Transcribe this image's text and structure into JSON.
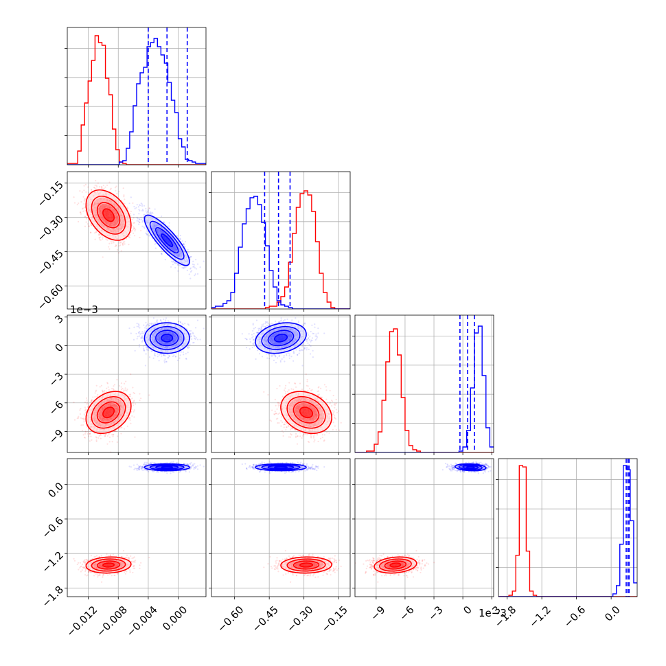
{
  "chart_data": {
    "type": "corner",
    "colors": {
      "red": "#ff0000",
      "blue": "#0000ff"
    },
    "grid": true,
    "series": [
      {
        "color": "#ff0000",
        "mean": [
          -0.0093,
          -0.29,
          -0.007,
          -1.4
        ],
        "std": [
          0.0015,
          0.055,
          0.0011,
          0.07
        ],
        "corr": [
          0,
          -0.4,
          0.3,
          0.1
        ]
      },
      {
        "color": "#0000ff",
        "mean": [
          -0.0015,
          -0.4,
          0.0008,
          0.3
        ],
        "std": [
          0.0015,
          0.055,
          0.0008,
          0.03
        ],
        "corr": [
          -0.85,
          0.3,
          0,
          0
        ]
      }
    ],
    "quantiles": {
      "color": "#0000ff",
      "p0": [
        -0.004,
        -0.0015,
        0.0012
      ],
      "p1": [
        -0.47,
        -0.41,
        -0.36
      ],
      "p2": [
        -0.0003,
        0.0005,
        0.0012
      ],
      "p3": [
        0.26,
        0.29,
        0.31
      ]
    },
    "panels": {
      "p0": {
        "range": [
          -0.0148,
          0.0037
        ],
        "ticks": [
          -0.012,
          -0.008,
          -0.004,
          0.0
        ],
        "tick_labels": [
          "−0.012",
          "−0.008",
          "−0.004",
          "0.000"
        ]
      },
      "p1": {
        "range": [
          -0.7,
          -0.1
        ],
        "ticks": [
          -0.6,
          -0.45,
          -0.3,
          -0.15
        ],
        "tick_labels": [
          "−0.60",
          "−0.45",
          "−0.30",
          "−0.15"
        ]
      },
      "p2": {
        "range": [
          -0.0112,
          0.0032
        ],
        "ticks": [
          -0.009,
          -0.006,
          -0.003,
          0.0,
          0.003
        ],
        "tick_labels": [
          "−9",
          "−6",
          "−3",
          "0",
          "3"
        ],
        "offset_label": "1e−3"
      },
      "p3": {
        "range": [
          -1.95,
          0.45
        ],
        "ticks": [
          -1.8,
          -1.2,
          -0.6,
          0.0
        ],
        "tick_labels": [
          "−1.8",
          "−1.2",
          "−0.6",
          "0.0"
        ]
      }
    },
    "y_axis_labels": {
      "row1": {
        "ticks": [
          -0.6,
          -0.45,
          -0.3,
          -0.15
        ],
        "tick_labels": [
          "−0.60",
          "−0.45",
          "−0.30",
          "−0.15"
        ]
      },
      "row2": {
        "ticks": [
          -0.009,
          -0.006,
          -0.003,
          0.0,
          0.003
        ],
        "tick_labels": [
          "−9",
          "−6",
          "−3",
          "0",
          "3"
        ],
        "offset_label": "1e−3"
      },
      "row3": {
        "ticks": [
          -1.8,
          -1.2,
          -0.6,
          0.0
        ],
        "tick_labels": [
          "−1.8",
          "−1.2",
          "−0.6",
          "0.0"
        ]
      }
    },
    "histograms": {
      "p0": {
        "red": {
          "edges": [
            -0.0148,
            0.0037
          ],
          "counts": [
            0.01,
            0.01,
            0.01,
            0.1,
            0.29,
            0.45,
            0.61,
            0.76,
            0.94,
            0.89,
            0.87,
            0.63,
            0.51,
            0.26,
            0.11,
            0.02,
            0.01,
            0,
            0,
            0,
            0,
            0,
            0,
            0,
            0,
            0,
            0,
            0,
            0,
            0,
            0,
            0,
            0,
            0,
            0,
            0,
            0,
            0,
            0,
            0
          ]
        },
        "blue": {
          "edges": [
            -0.0148,
            0.0037
          ],
          "counts": [
            0,
            0,
            0,
            0,
            0,
            0,
            0,
            0,
            0,
            0,
            0,
            0,
            0,
            0,
            0,
            0.02,
            0.03,
            0.12,
            0.24,
            0.43,
            0.59,
            0.67,
            0.71,
            0.86,
            0.89,
            0.92,
            0.86,
            0.8,
            0.74,
            0.6,
            0.47,
            0.38,
            0.19,
            0.13,
            0.04,
            0.03,
            0.02,
            0.01,
            0.01,
            0.01
          ]
        }
      },
      "p1": {
        "red": {
          "edges": [
            -0.7,
            -0.1
          ],
          "counts": [
            0,
            0,
            0,
            0,
            0,
            0,
            0,
            0,
            0,
            0,
            0,
            0,
            0,
            0,
            0.01,
            0.02,
            0.02,
            0.05,
            0.09,
            0.16,
            0.34,
            0.55,
            0.74,
            0.84,
            0.86,
            0.83,
            0.71,
            0.49,
            0.26,
            0.12,
            0.05,
            0.01,
            0,
            0,
            0,
            0
          ]
        },
        "blue": {
          "edges": [
            -0.7,
            -0.1
          ],
          "counts": [
            0.01,
            0.02,
            0.02,
            0.04,
            0.06,
            0.12,
            0.26,
            0.45,
            0.62,
            0.73,
            0.81,
            0.82,
            0.76,
            0.63,
            0.46,
            0.28,
            0.16,
            0.06,
            0.03,
            0.02,
            0.01,
            0,
            0,
            0,
            0,
            0,
            0,
            0,
            0,
            0,
            0,
            0,
            0,
            0,
            0,
            0
          ]
        }
      },
      "p2": {
        "red": {
          "edges": [
            -0.0112,
            0.0032
          ],
          "counts": [
            0,
            0,
            0,
            0.01,
            0.01,
            0.06,
            0.15,
            0.38,
            0.66,
            0.88,
            0.9,
            0.71,
            0.4,
            0.16,
            0.05,
            0.02,
            0.01,
            0,
            0,
            0,
            0,
            0,
            0,
            0,
            0,
            0,
            0,
            0,
            0,
            0,
            0,
            0,
            0,
            0,
            0,
            0
          ]
        },
        "blue": {
          "edges": [
            -0.0112,
            0.0032
          ],
          "counts": [
            0,
            0,
            0,
            0,
            0,
            0,
            0,
            0,
            0,
            0,
            0,
            0,
            0,
            0,
            0,
            0,
            0,
            0,
            0,
            0,
            0,
            0,
            0,
            0,
            0,
            0,
            0,
            0.01,
            0.04,
            0.16,
            0.47,
            0.87,
            0.92,
            0.56,
            0.18,
            0.04
          ]
        }
      },
      "p3": {
        "red": {
          "edges": [
            -1.95,
            0.45
          ],
          "counts": [
            0,
            0,
            0,
            0.01,
            0.04,
            0.3,
            0.95,
            0.94,
            0.33,
            0.04,
            0.01,
            0,
            0,
            0,
            0,
            0,
            0,
            0,
            0,
            0,
            0,
            0,
            0,
            0,
            0,
            0,
            0,
            0,
            0,
            0,
            0,
            0,
            0,
            0,
            0,
            0,
            0,
            0,
            0,
            0
          ]
        },
        "blue": {
          "edges": [
            -1.95,
            0.45
          ],
          "counts": [
            0,
            0,
            0,
            0,
            0,
            0,
            0,
            0,
            0,
            0,
            0,
            0,
            0,
            0,
            0,
            0,
            0,
            0,
            0,
            0,
            0,
            0,
            0,
            0,
            0,
            0,
            0,
            0,
            0,
            0,
            0,
            0,
            0,
            0.02,
            0.08,
            0.38,
            0.95,
            0.92,
            0.55,
            0.1
          ]
        }
      }
    }
  }
}
